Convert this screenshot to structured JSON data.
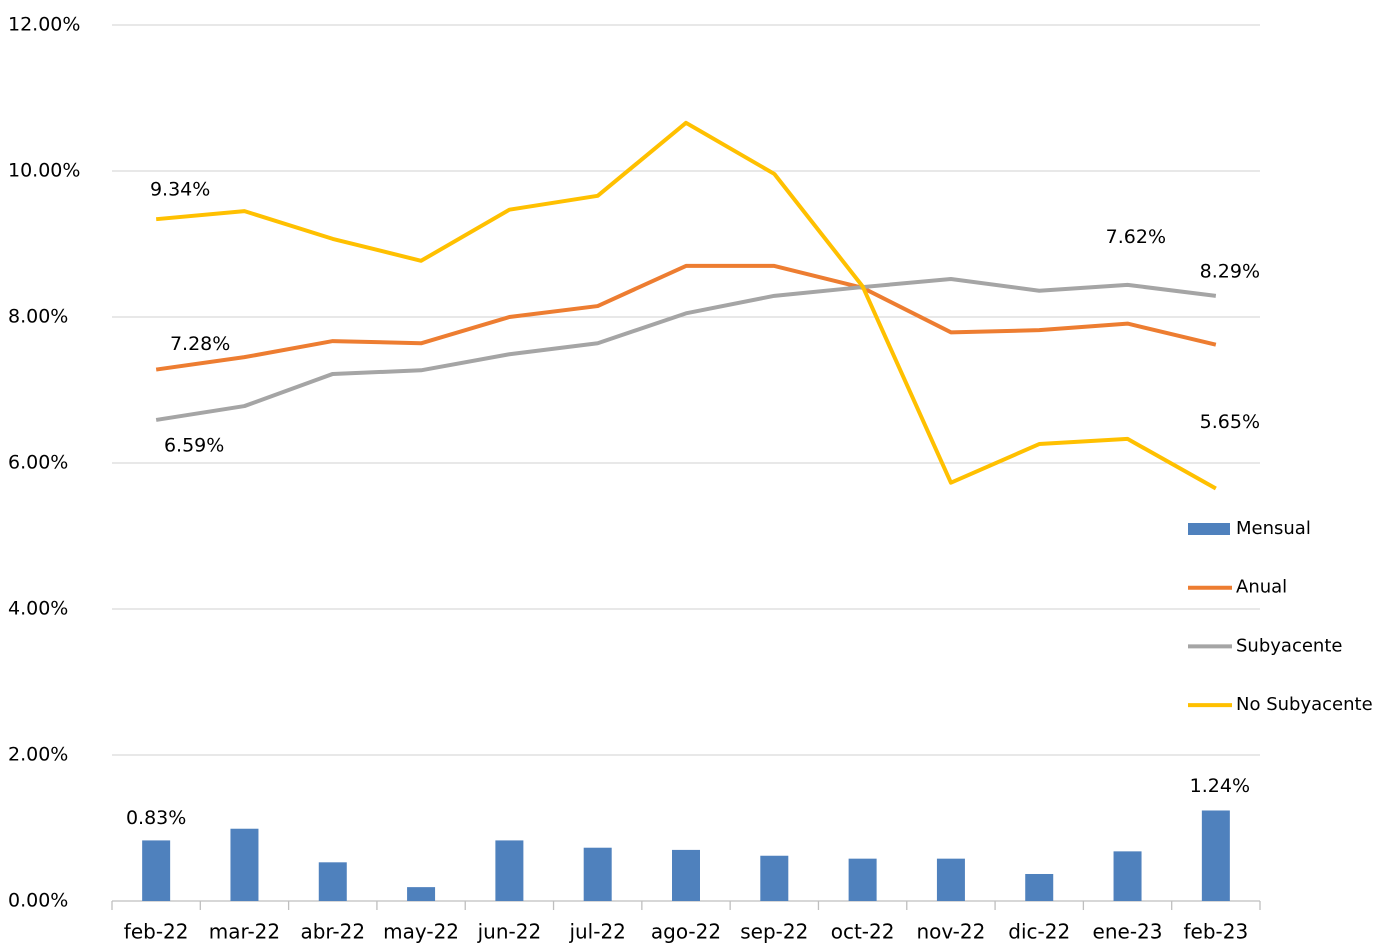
{
  "chart_data": {
    "type": "bar-line",
    "categories": [
      "feb-22",
      "mar-22",
      "abr-22",
      "may-22",
      "jun-22",
      "jul-22",
      "ago-22",
      "sep-22",
      "oct-22",
      "nov-22",
      "dic-22",
      "ene-23",
      "feb-23"
    ],
    "series": [
      {
        "name": "Mensual",
        "type": "bar",
        "color": "#4f81bd",
        "values": [
          0.83,
          0.99,
          0.53,
          0.19,
          0.83,
          0.73,
          0.7,
          0.62,
          0.58,
          0.58,
          0.37,
          0.68,
          1.24
        ],
        "value_labels": [
          "0.83%",
          null,
          null,
          null,
          null,
          null,
          null,
          null,
          null,
          null,
          null,
          null,
          "1.24%"
        ]
      },
      {
        "name": "Anual",
        "type": "line",
        "color": "#ed7d31",
        "values": [
          7.28,
          7.45,
          7.67,
          7.64,
          8.0,
          8.15,
          8.7,
          8.7,
          8.4,
          7.79,
          7.82,
          7.91,
          7.62
        ],
        "value_labels": [
          "7.28%",
          null,
          null,
          null,
          null,
          null,
          null,
          null,
          null,
          null,
          null,
          null,
          "7.62%"
        ]
      },
      {
        "name": "Subyacente",
        "type": "line",
        "color": "#a5a5a5",
        "values": [
          6.59,
          6.78,
          7.22,
          7.27,
          7.49,
          7.64,
          8.05,
          8.29,
          8.41,
          8.52,
          8.36,
          8.44,
          8.29
        ],
        "value_labels": [
          "6.59%",
          null,
          null,
          null,
          null,
          null,
          null,
          null,
          null,
          null,
          null,
          null,
          "8.29%"
        ]
      },
      {
        "name": "No Subyacente",
        "type": "line",
        "color": "#ffc000",
        "values": [
          9.34,
          9.45,
          9.07,
          8.77,
          9.47,
          9.66,
          10.66,
          9.96,
          8.42,
          5.73,
          6.26,
          6.33,
          5.65
        ],
        "value_labels": [
          "9.34%",
          null,
          null,
          null,
          null,
          null,
          null,
          null,
          null,
          null,
          null,
          null,
          "5.65%"
        ]
      }
    ],
    "ylim": [
      0,
      12
    ],
    "yticks": [
      {
        "value": 0,
        "label": "0.00%"
      },
      {
        "value": 2,
        "label": "2.00%"
      },
      {
        "value": 4,
        "label": "4.00%"
      },
      {
        "value": 6,
        "label": "6.00%"
      },
      {
        "value": 8,
        "label": "8.00%"
      },
      {
        "value": 10,
        "label": "10.00%"
      },
      {
        "value": 12,
        "label": "12.00%"
      }
    ],
    "grid": true,
    "legend": "right"
  }
}
